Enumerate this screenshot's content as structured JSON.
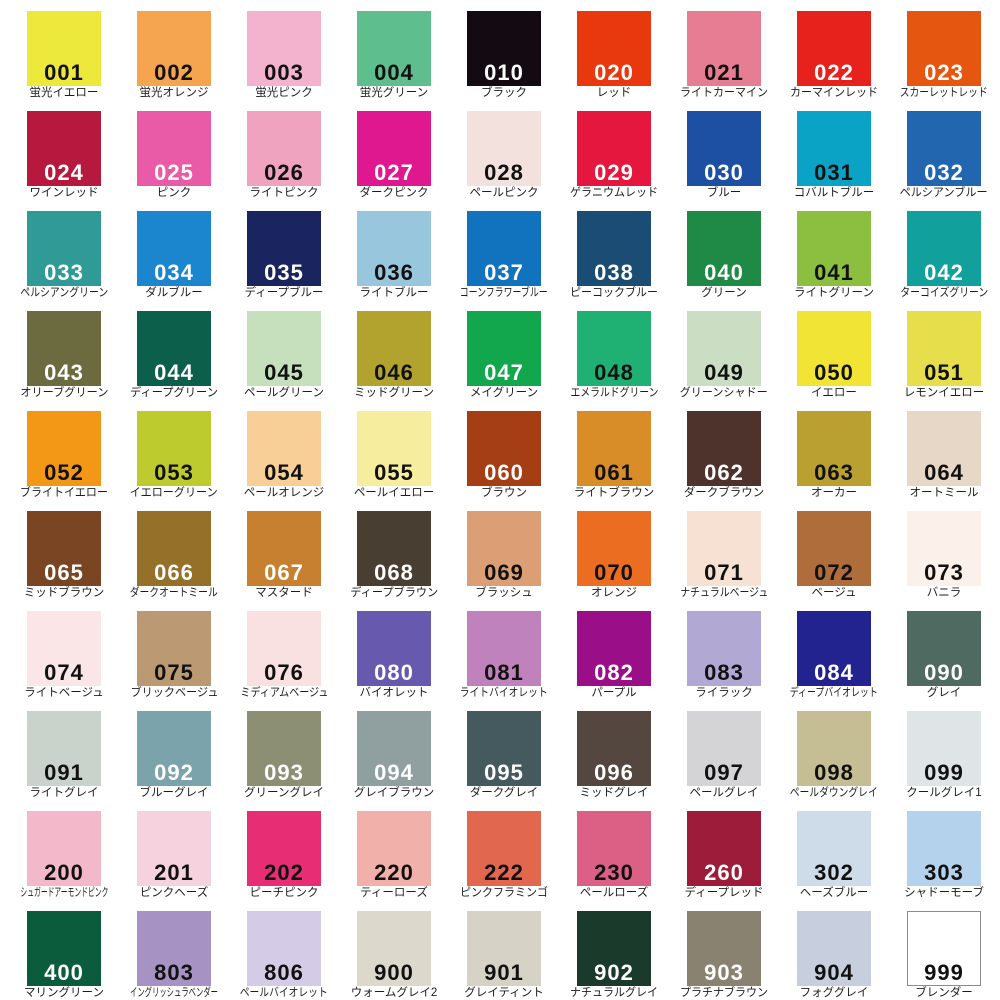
{
  "chart_data": {
    "type": "table",
    "title": "",
    "columns": 9,
    "rows": 10,
    "label_color": "#1c1c1c",
    "background": "#ffffff",
    "swatches": [
      {
        "code": "001",
        "name": "蛍光イエロー",
        "hex": "#EDE93C",
        "number_color": "#111111"
      },
      {
        "code": "002",
        "name": "蛍光オレンジ",
        "hex": "#F5A44F",
        "number_color": "#111111"
      },
      {
        "code": "003",
        "name": "蛍光ピンク",
        "hex": "#F3B3CE",
        "number_color": "#111111"
      },
      {
        "code": "004",
        "name": "蛍光グリーン",
        "hex": "#5FBE8D",
        "number_color": "#111111"
      },
      {
        "code": "010",
        "name": "ブラック",
        "hex": "#130B11",
        "number_color": "#ffffff"
      },
      {
        "code": "020",
        "name": "レッド",
        "hex": "#E8380D",
        "number_color": "#ffffff"
      },
      {
        "code": "021",
        "name": "ライトカーマイン",
        "hex": "#E77D92",
        "number_color": "#111111"
      },
      {
        "code": "022",
        "name": "カーマインレッド",
        "hex": "#E7211B",
        "number_color": "#ffffff"
      },
      {
        "code": "023",
        "name": "スカーレットレッド",
        "hex": "#E55711",
        "number_color": "#ffffff"
      },
      {
        "code": "024",
        "name": "ワインレッド",
        "hex": "#B7193E",
        "number_color": "#ffffff"
      },
      {
        "code": "025",
        "name": "ピンク",
        "hex": "#E95BA7",
        "number_color": "#ffffff"
      },
      {
        "code": "026",
        "name": "ライトピンク",
        "hex": "#F0A3BF",
        "number_color": "#111111"
      },
      {
        "code": "027",
        "name": "ダークピンク",
        "hex": "#E0188F",
        "number_color": "#ffffff"
      },
      {
        "code": "028",
        "name": "ペールピンク",
        "hex": "#F3E1DD",
        "number_color": "#111111"
      },
      {
        "code": "029",
        "name": "ゲラニウムレッド",
        "hex": "#E6173E",
        "number_color": "#ffffff"
      },
      {
        "code": "030",
        "name": "ブルー",
        "hex": "#1D50A2",
        "number_color": "#ffffff"
      },
      {
        "code": "031",
        "name": "コバルトブルー",
        "hex": "#0AA3C6",
        "number_color": "#111111"
      },
      {
        "code": "032",
        "name": "ペルシアンブルー",
        "hex": "#2166AF",
        "number_color": "#ffffff"
      },
      {
        "code": "033",
        "name": "ペルシアングリーン",
        "hex": "#2F9A96",
        "number_color": "#ffffff"
      },
      {
        "code": "034",
        "name": "ダルブルー",
        "hex": "#1B86CE",
        "number_color": "#ffffff"
      },
      {
        "code": "035",
        "name": "ディープブルー",
        "hex": "#1A2560",
        "number_color": "#ffffff"
      },
      {
        "code": "036",
        "name": "ライトブルー",
        "hex": "#97C6DD",
        "number_color": "#111111"
      },
      {
        "code": "037",
        "name": "コーンフラワーブルー",
        "hex": "#1173BD",
        "number_color": "#ffffff"
      },
      {
        "code": "038",
        "name": "ピーコックブルー",
        "hex": "#1A4C74",
        "number_color": "#ffffff"
      },
      {
        "code": "040",
        "name": "グリーン",
        "hex": "#1E8A45",
        "number_color": "#ffffff"
      },
      {
        "code": "041",
        "name": "ライトグリーン",
        "hex": "#8CBF40",
        "number_color": "#111111"
      },
      {
        "code": "042",
        "name": "ターコイズグリーン",
        "hex": "#12A09D",
        "number_color": "#ffffff"
      },
      {
        "code": "043",
        "name": "オリーブグリーン",
        "hex": "#6B6B3F",
        "number_color": "#ffffff"
      },
      {
        "code": "044",
        "name": "ディープグリーン",
        "hex": "#0C5F4B",
        "number_color": "#ffffff"
      },
      {
        "code": "045",
        "name": "ペールグリーン",
        "hex": "#C6E0BD",
        "number_color": "#111111"
      },
      {
        "code": "046",
        "name": "ミッドグリーン",
        "hex": "#B2A32F",
        "number_color": "#111111"
      },
      {
        "code": "047",
        "name": "メイグリーン",
        "hex": "#12A74C",
        "number_color": "#ffffff"
      },
      {
        "code": "048",
        "name": "エメラルドグリーン",
        "hex": "#1FB173",
        "number_color": "#111111"
      },
      {
        "code": "049",
        "name": "グリーンシャドー",
        "hex": "#CBDDC2",
        "number_color": "#111111"
      },
      {
        "code": "050",
        "name": "イエロー",
        "hex": "#F2E434",
        "number_color": "#111111"
      },
      {
        "code": "051",
        "name": "レモンイエロー",
        "hex": "#E6DE4B",
        "number_color": "#111111"
      },
      {
        "code": "052",
        "name": "ブライトイエロー",
        "hex": "#F29816",
        "number_color": "#111111"
      },
      {
        "code": "053",
        "name": "イエローグリーン",
        "hex": "#BECB2E",
        "number_color": "#111111"
      },
      {
        "code": "054",
        "name": "ペールオレンジ",
        "hex": "#F8CF97",
        "number_color": "#111111"
      },
      {
        "code": "055",
        "name": "ペールイエロー",
        "hex": "#F7ED9E",
        "number_color": "#111111"
      },
      {
        "code": "060",
        "name": "ブラウン",
        "hex": "#A63E15",
        "number_color": "#ffffff"
      },
      {
        "code": "061",
        "name": "ライトブラウン",
        "hex": "#D98D28",
        "number_color": "#111111"
      },
      {
        "code": "062",
        "name": "ダークブラウン",
        "hex": "#4D332B",
        "number_color": "#ffffff"
      },
      {
        "code": "063",
        "name": "オーカー",
        "hex": "#BAA030",
        "number_color": "#111111"
      },
      {
        "code": "064",
        "name": "オートミール",
        "hex": "#E6D7C6",
        "number_color": "#111111"
      },
      {
        "code": "065",
        "name": "ミッドブラウン",
        "hex": "#7A4522",
        "number_color": "#ffffff"
      },
      {
        "code": "066",
        "name": "ダークオートミール",
        "hex": "#947029",
        "number_color": "#ffffff"
      },
      {
        "code": "067",
        "name": "マスタード",
        "hex": "#C6802F",
        "number_color": "#ffffff"
      },
      {
        "code": "068",
        "name": "ディープブラウン",
        "hex": "#493E32",
        "number_color": "#ffffff"
      },
      {
        "code": "069",
        "name": "ブラッシュ",
        "hex": "#DC9E74",
        "number_color": "#111111"
      },
      {
        "code": "070",
        "name": "オレンジ",
        "hex": "#EB6D21",
        "number_color": "#111111"
      },
      {
        "code": "071",
        "name": "ナチュラルベージュ",
        "hex": "#F6E1D2",
        "number_color": "#111111"
      },
      {
        "code": "072",
        "name": "ベージュ",
        "hex": "#AF6D3C",
        "number_color": "#111111"
      },
      {
        "code": "073",
        "name": "バニラ",
        "hex": "#FBF1EA",
        "number_color": "#111111"
      },
      {
        "code": "074",
        "name": "ライトベージュ",
        "hex": "#FBE6E7",
        "number_color": "#111111"
      },
      {
        "code": "075",
        "name": "ブリックベージュ",
        "hex": "#BB9A73",
        "number_color": "#111111"
      },
      {
        "code": "076",
        "name": "ミディアムベージュ",
        "hex": "#F9E0E1",
        "number_color": "#111111"
      },
      {
        "code": "080",
        "name": "バイオレット",
        "hex": "#675AAE",
        "number_color": "#ffffff"
      },
      {
        "code": "081",
        "name": "ライトバイオレット",
        "hex": "#C082BC",
        "number_color": "#111111"
      },
      {
        "code": "082",
        "name": "パープル",
        "hex": "#9A0F87",
        "number_color": "#ffffff"
      },
      {
        "code": "083",
        "name": "ライラック",
        "hex": "#B2A8D4",
        "number_color": "#111111"
      },
      {
        "code": "084",
        "name": "ディープバイオレット",
        "hex": "#232390",
        "number_color": "#ffffff"
      },
      {
        "code": "090",
        "name": "グレイ",
        "hex": "#4F6A61",
        "number_color": "#ffffff"
      },
      {
        "code": "091",
        "name": "ライトグレイ",
        "hex": "#C9D2CB",
        "number_color": "#111111"
      },
      {
        "code": "092",
        "name": "ブルーグレイ",
        "hex": "#7AA3AB",
        "number_color": "#ffffff"
      },
      {
        "code": "093",
        "name": "グリーングレイ",
        "hex": "#8C8F74",
        "number_color": "#ffffff"
      },
      {
        "code": "094",
        "name": "グレイブラウン",
        "hex": "#90A0A1",
        "number_color": "#ffffff"
      },
      {
        "code": "095",
        "name": "ダークグレイ",
        "hex": "#455A5F",
        "number_color": "#ffffff"
      },
      {
        "code": "096",
        "name": "ミッドグレイ",
        "hex": "#544740",
        "number_color": "#ffffff"
      },
      {
        "code": "097",
        "name": "ペールグレイ",
        "hex": "#D4D4D6",
        "number_color": "#111111"
      },
      {
        "code": "098",
        "name": "ペールダウングレイ",
        "hex": "#C5BD93",
        "number_color": "#111111"
      },
      {
        "code": "099",
        "name": "クールグレイ1",
        "hex": "#DFE4E6",
        "number_color": "#111111"
      },
      {
        "code": "200",
        "name": "シュガードアーモンドピンク",
        "hex": "#F3B8CA",
        "number_color": "#111111"
      },
      {
        "code": "201",
        "name": "ピンクヘーズ",
        "hex": "#F5D2DD",
        "number_color": "#111111"
      },
      {
        "code": "202",
        "name": "ピーチピンク",
        "hex": "#E72E74",
        "number_color": "#111111"
      },
      {
        "code": "220",
        "name": "ティーローズ",
        "hex": "#F2B0AB",
        "number_color": "#111111"
      },
      {
        "code": "222",
        "name": "ピンクフラミンゴ",
        "hex": "#E1684E",
        "number_color": "#111111"
      },
      {
        "code": "230",
        "name": "ペールローズ",
        "hex": "#DC6085",
        "number_color": "#111111"
      },
      {
        "code": "260",
        "name": "ディープレッド",
        "hex": "#9D1C39",
        "number_color": "#ffffff"
      },
      {
        "code": "302",
        "name": "ヘーズブルー",
        "hex": "#CEDCEA",
        "number_color": "#111111"
      },
      {
        "code": "303",
        "name": "シャドーモーブ",
        "hex": "#B5D2EC",
        "number_color": "#111111"
      },
      {
        "code": "400",
        "name": "マリングリーン",
        "hex": "#0A5C3D",
        "number_color": "#ffffff"
      },
      {
        "code": "803",
        "name": "イングリッシュラベンダー",
        "hex": "#A793C3",
        "number_color": "#111111"
      },
      {
        "code": "806",
        "name": "ペールバイオレット",
        "hex": "#D4CCE7",
        "number_color": "#111111"
      },
      {
        "code": "900",
        "name": "ウォームグレイ2",
        "hex": "#DCD8CC",
        "number_color": "#111111"
      },
      {
        "code": "901",
        "name": "グレイティント",
        "hex": "#D6D3C6",
        "number_color": "#111111"
      },
      {
        "code": "902",
        "name": "ナチュラルグレイ",
        "hex": "#1A3A2C",
        "number_color": "#ffffff"
      },
      {
        "code": "903",
        "name": "プラチナブラウン",
        "hex": "#8A8271",
        "number_color": "#ffffff"
      },
      {
        "code": "904",
        "name": "フォググレイ",
        "hex": "#C7CEDE",
        "number_color": "#111111"
      },
      {
        "code": "999",
        "name": "ブレンダー",
        "hex": "#FFFFFF",
        "number_color": "#111111",
        "border": "#8c8c8c"
      }
    ]
  }
}
